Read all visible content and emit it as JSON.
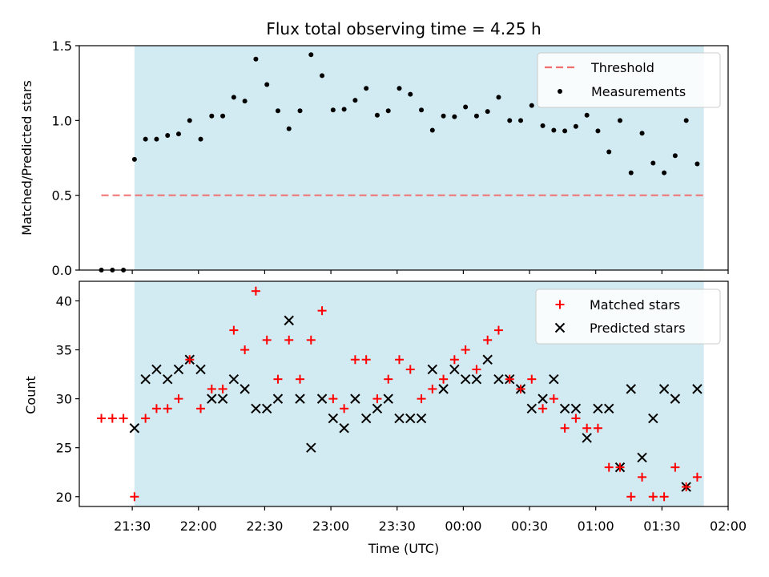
{
  "chart_data": {
    "title": "Flux total observing time = 4.25 h",
    "xlabel": "Time (UTC)",
    "x_unit": "UTC time (date crosses midnight)",
    "x_ticks": [
      "21:30",
      "22:00",
      "22:30",
      "23:00",
      "23:30",
      "00:00",
      "00:30",
      "01:00",
      "01:30",
      "02:00"
    ],
    "x_range": [
      "2000-01-01T21:06",
      "2000-01-02T02:00"
    ],
    "observing_window": [
      "2000-01-01T21:31",
      "2000-01-02T01:49"
    ],
    "colors": {
      "observing_window": "#add8e6",
      "threshold": "#f07070",
      "measurements": "#000000",
      "matched": "#ff0000",
      "predicted": "#000000"
    },
    "panels": [
      {
        "type": "scatter",
        "ylabel": "Matched/Predicted stars",
        "ylim": [
          0,
          1.5
        ],
        "yticks": [
          "0.0",
          "0.5",
          "1.0",
          "1.5"
        ],
        "legend_position": "top-right",
        "legend": {
          "threshold": "Threshold",
          "measurements": "Measurements"
        },
        "threshold": {
          "name": "Threshold",
          "y": 0.5,
          "x_start": "2000-01-01T21:16",
          "x_end": "2000-01-02T01:49"
        },
        "series": [
          {
            "name": "Measurements",
            "marker": "dot",
            "points": [
              [
                "2000-01-01T21:16",
                0.0
              ],
              [
                "2000-01-01T21:21",
                0.0
              ],
              [
                "2000-01-01T21:26",
                0.0
              ],
              [
                "2000-01-01T21:31",
                0.74
              ],
              [
                "2000-01-01T21:36",
                0.875
              ],
              [
                "2000-01-01T21:41",
                0.875
              ],
              [
                "2000-01-01T21:46",
                0.9
              ],
              [
                "2000-01-01T21:51",
                0.91
              ],
              [
                "2000-01-01T21:56",
                1.0
              ],
              [
                "2000-01-01T22:01",
                0.875
              ],
              [
                "2000-01-01T22:06",
                1.03
              ],
              [
                "2000-01-01T22:11",
                1.03
              ],
              [
                "2000-01-01T22:16",
                1.155
              ],
              [
                "2000-01-01T22:21",
                1.13
              ],
              [
                "2000-01-01T22:26",
                1.41
              ],
              [
                "2000-01-01T22:31",
                1.24
              ],
              [
                "2000-01-01T22:36",
                1.065
              ],
              [
                "2000-01-01T22:41",
                0.945
              ],
              [
                "2000-01-01T22:46",
                1.065
              ],
              [
                "2000-01-01T22:51",
                1.44
              ],
              [
                "2000-01-01T22:56",
                1.3
              ],
              [
                "2000-01-01T23:01",
                1.07
              ],
              [
                "2000-01-01T23:06",
                1.075
              ],
              [
                "2000-01-01T23:11",
                1.135
              ],
              [
                "2000-01-01T23:16",
                1.215
              ],
              [
                "2000-01-01T23:21",
                1.035
              ],
              [
                "2000-01-01T23:26",
                1.065
              ],
              [
                "2000-01-01T23:31",
                1.215
              ],
              [
                "2000-01-01T23:36",
                1.175
              ],
              [
                "2000-01-01T23:41",
                1.07
              ],
              [
                "2000-01-01T23:46",
                0.935
              ],
              [
                "2000-01-01T23:51",
                1.03
              ],
              [
                "2000-01-01T23:56",
                1.025
              ],
              [
                "2000-01-02T00:01",
                1.09
              ],
              [
                "2000-01-02T00:06",
                1.03
              ],
              [
                "2000-01-02T00:11",
                1.06
              ],
              [
                "2000-01-02T00:16",
                1.155
              ],
              [
                "2000-01-02T00:21",
                1.0
              ],
              [
                "2000-01-02T00:26",
                1.0
              ],
              [
                "2000-01-02T00:31",
                1.1
              ],
              [
                "2000-01-02T00:36",
                0.965
              ],
              [
                "2000-01-02T00:41",
                0.935
              ],
              [
                "2000-01-02T00:46",
                0.93
              ],
              [
                "2000-01-02T00:51",
                0.96
              ],
              [
                "2000-01-02T00:56",
                1.035
              ],
              [
                "2000-01-02T01:01",
                0.93
              ],
              [
                "2000-01-02T01:06",
                0.79
              ],
              [
                "2000-01-02T01:11",
                1.0
              ],
              [
                "2000-01-02T01:16",
                0.65
              ],
              [
                "2000-01-02T01:21",
                0.915
              ],
              [
                "2000-01-02T01:26",
                0.715
              ],
              [
                "2000-01-02T01:31",
                0.65
              ],
              [
                "2000-01-02T01:36",
                0.765
              ],
              [
                "2000-01-02T01:41",
                1.0
              ],
              [
                "2000-01-02T01:46",
                0.71
              ]
            ]
          }
        ]
      },
      {
        "type": "scatter",
        "ylabel": "Count",
        "ylim": [
          19,
          42
        ],
        "yticks": [
          "20",
          "25",
          "30",
          "35",
          "40"
        ],
        "legend_position": "top-right",
        "legend": {
          "matched": "Matched stars",
          "predicted": "Predicted stars"
        },
        "series": [
          {
            "name": "Matched stars",
            "marker": "plus",
            "points": [
              [
                "2000-01-01T21:16",
                28
              ],
              [
                "2000-01-01T21:21",
                28
              ],
              [
                "2000-01-01T21:26",
                28
              ],
              [
                "2000-01-01T21:31",
                20
              ],
              [
                "2000-01-01T21:36",
                28
              ],
              [
                "2000-01-01T21:41",
                29
              ],
              [
                "2000-01-01T21:46",
                29
              ],
              [
                "2000-01-01T21:51",
                30
              ],
              [
                "2000-01-01T21:56",
                34
              ],
              [
                "2000-01-01T22:01",
                29
              ],
              [
                "2000-01-01T22:06",
                31
              ],
              [
                "2000-01-01T22:11",
                31
              ],
              [
                "2000-01-01T22:16",
                37
              ],
              [
                "2000-01-01T22:21",
                35
              ],
              [
                "2000-01-01T22:26",
                41
              ],
              [
                "2000-01-01T22:31",
                36
              ],
              [
                "2000-01-01T22:36",
                32
              ],
              [
                "2000-01-01T22:41",
                36
              ],
              [
                "2000-01-01T22:46",
                32
              ],
              [
                "2000-01-01T22:51",
                36
              ],
              [
                "2000-01-01T22:56",
                39
              ],
              [
                "2000-01-01T23:01",
                30
              ],
              [
                "2000-01-01T23:06",
                29
              ],
              [
                "2000-01-01T23:11",
                34
              ],
              [
                "2000-01-01T23:16",
                34
              ],
              [
                "2000-01-01T23:21",
                30
              ],
              [
                "2000-01-01T23:26",
                32
              ],
              [
                "2000-01-01T23:31",
                34
              ],
              [
                "2000-01-01T23:36",
                33
              ],
              [
                "2000-01-01T23:41",
                30
              ],
              [
                "2000-01-01T23:46",
                31
              ],
              [
                "2000-01-01T23:51",
                32
              ],
              [
                "2000-01-01T23:56",
                34
              ],
              [
                "2000-01-02T00:01",
                35
              ],
              [
                "2000-01-02T00:06",
                33
              ],
              [
                "2000-01-02T00:11",
                36
              ],
              [
                "2000-01-02T00:16",
                37
              ],
              [
                "2000-01-02T00:21",
                32
              ],
              [
                "2000-01-02T00:26",
                31
              ],
              [
                "2000-01-02T00:31",
                32
              ],
              [
                "2000-01-02T00:36",
                29
              ],
              [
                "2000-01-02T00:41",
                30
              ],
              [
                "2000-01-02T00:46",
                27
              ],
              [
                "2000-01-02T00:51",
                28
              ],
              [
                "2000-01-02T00:56",
                27
              ],
              [
                "2000-01-02T01:01",
                27
              ],
              [
                "2000-01-02T01:06",
                23
              ],
              [
                "2000-01-02T01:11",
                23
              ],
              [
                "2000-01-02T01:16",
                20
              ],
              [
                "2000-01-02T01:21",
                22
              ],
              [
                "2000-01-02T01:26",
                20
              ],
              [
                "2000-01-02T01:31",
                20
              ],
              [
                "2000-01-02T01:36",
                23
              ],
              [
                "2000-01-02T01:41",
                21
              ],
              [
                "2000-01-02T01:46",
                22
              ]
            ]
          },
          {
            "name": "Predicted stars",
            "marker": "x",
            "points": [
              [
                "2000-01-01T21:31",
                27
              ],
              [
                "2000-01-01T21:36",
                32
              ],
              [
                "2000-01-01T21:41",
                33
              ],
              [
                "2000-01-01T21:46",
                32
              ],
              [
                "2000-01-01T21:51",
                33
              ],
              [
                "2000-01-01T21:56",
                34
              ],
              [
                "2000-01-01T22:01",
                33
              ],
              [
                "2000-01-01T22:06",
                30
              ],
              [
                "2000-01-01T22:11",
                30
              ],
              [
                "2000-01-01T22:16",
                32
              ],
              [
                "2000-01-01T22:21",
                31
              ],
              [
                "2000-01-01T22:26",
                29
              ],
              [
                "2000-01-01T22:31",
                29
              ],
              [
                "2000-01-01T22:36",
                30
              ],
              [
                "2000-01-01T22:41",
                38
              ],
              [
                "2000-01-01T22:46",
                30
              ],
              [
                "2000-01-01T22:51",
                25
              ],
              [
                "2000-01-01T22:56",
                30
              ],
              [
                "2000-01-01T23:01",
                28
              ],
              [
                "2000-01-01T23:06",
                27
              ],
              [
                "2000-01-01T23:11",
                30
              ],
              [
                "2000-01-01T23:16",
                28
              ],
              [
                "2000-01-01T23:21",
                29
              ],
              [
                "2000-01-01T23:26",
                30
              ],
              [
                "2000-01-01T23:31",
                28
              ],
              [
                "2000-01-01T23:36",
                28
              ],
              [
                "2000-01-01T23:41",
                28
              ],
              [
                "2000-01-01T23:46",
                33
              ],
              [
                "2000-01-01T23:51",
                31
              ],
              [
                "2000-01-01T23:56",
                33
              ],
              [
                "2000-01-02T00:01",
                32
              ],
              [
                "2000-01-02T00:06",
                32
              ],
              [
                "2000-01-02T00:11",
                34
              ],
              [
                "2000-01-02T00:16",
                32
              ],
              [
                "2000-01-02T00:21",
                32
              ],
              [
                "2000-01-02T00:26",
                31
              ],
              [
                "2000-01-02T00:31",
                29
              ],
              [
                "2000-01-02T00:36",
                30
              ],
              [
                "2000-01-02T00:41",
                32
              ],
              [
                "2000-01-02T00:46",
                29
              ],
              [
                "2000-01-02T00:51",
                29
              ],
              [
                "2000-01-02T00:56",
                26
              ],
              [
                "2000-01-02T01:01",
                29
              ],
              [
                "2000-01-02T01:06",
                29
              ],
              [
                "2000-01-02T01:11",
                23
              ],
              [
                "2000-01-02T01:16",
                31
              ],
              [
                "2000-01-02T01:21",
                24
              ],
              [
                "2000-01-02T01:26",
                28
              ],
              [
                "2000-01-02T01:31",
                31
              ],
              [
                "2000-01-02T01:36",
                30
              ],
              [
                "2000-01-02T01:41",
                21
              ],
              [
                "2000-01-02T01:46",
                31
              ]
            ]
          }
        ]
      }
    ]
  }
}
